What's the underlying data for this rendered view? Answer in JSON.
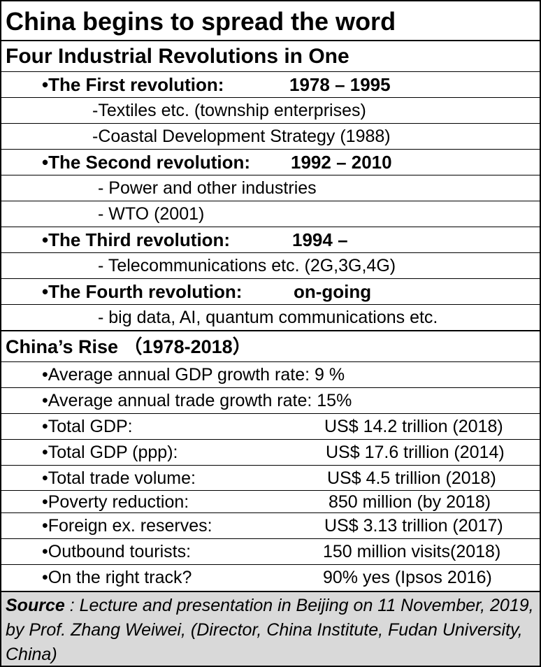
{
  "title": "China begins to spread the word",
  "section1": {
    "heading": "Four Industrial Revolutions in One",
    "revolutions": [
      {
        "label": "•The First revolution:",
        "years": "1978 – 1995",
        "items": [
          "-Textiles etc. (township enterprises)",
          "-Coastal Development Strategy (1988)"
        ]
      },
      {
        "label": "•The Second revolution:",
        "years": "1992 – 2010",
        "items": [
          "-  Power and other industries",
          "-  WTO (2001)"
        ]
      },
      {
        "label": "•The Third revolution:",
        "years": "1994 –",
        "items": [
          "- Telecommunications etc.  (2G,3G,4G)"
        ]
      },
      {
        "label": "•The Fourth revolution:",
        "years": "on-going",
        "items": [
          "- big data, AI, quantum communications  etc."
        ]
      }
    ]
  },
  "section2": {
    "heading": "China’s Rise （1978-2018）",
    "rows": [
      {
        "label": "•Average annual GDP growth rate:   9 %",
        "value": ""
      },
      {
        "label": "•Average annual trade growth rate:  15%",
        "value": ""
      },
      {
        "label": "•Total GDP:",
        "value": "US$ 14.2 trillion (2018)"
      },
      {
        "label": "•Total GDP (ppp):",
        "value": "US$ 17.6 trillion (2014)"
      },
      {
        "label": "•Total trade volume:",
        "value": "US$  4.5 trillion (2018)"
      },
      {
        "label": "•Poverty reduction:",
        "value": "850 million (by 2018)"
      },
      {
        "label": "•Foreign ex. reserves:",
        "value": "US$ 3.13 trillion (2017)"
      },
      {
        "label": "•Outbound tourists:",
        "value": "150 million visits(2018)"
      },
      {
        "label": "•On the right track?",
        "value": "90% yes (Ipsos 2016)"
      }
    ]
  },
  "source": {
    "label": "Source",
    "text": " : Lecture and presentation in Beijing on 11 November, 2019,  by Prof. Zhang Weiwei, (Director, China Institute, Fudan University, China)"
  }
}
